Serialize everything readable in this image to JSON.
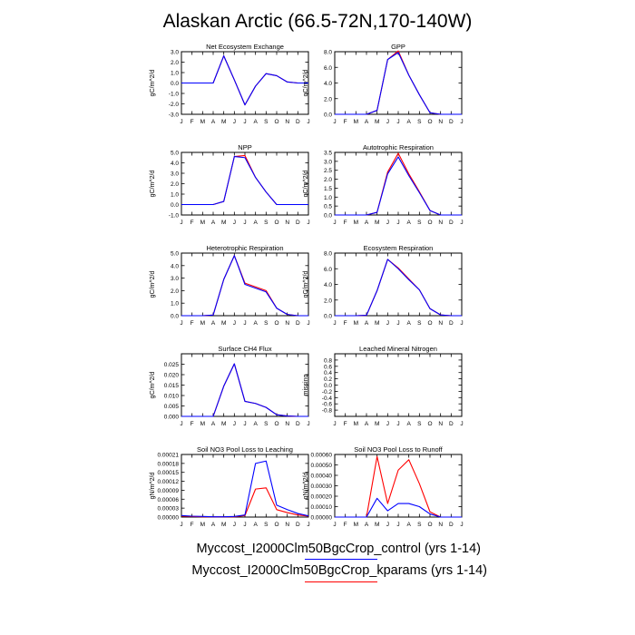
{
  "title": "Alaskan Arctic (66.5-72N,170-140W)",
  "colors": {
    "control": "#0000ff",
    "kparams": "#ff0000",
    "axis": "#000000"
  },
  "legend": [
    {
      "label": "Myccost_I2000Clm50BgcCrop_control (yrs 1-14)",
      "color": "#0000ff"
    },
    {
      "label": "Myccost_I2000Clm50BgcCrop_kparams (yrs 1-14)",
      "color": "#ff0000"
    }
  ],
  "chart_data": [
    {
      "type": "line",
      "title": "Net Ecosystem Exchange",
      "ylabel": "gC/m^2/d",
      "x": [
        "J",
        "F",
        "M",
        "A",
        "M",
        "J",
        "J",
        "A",
        "S",
        "O",
        "N",
        "D",
        "J"
      ],
      "ylim": [
        -3.0,
        3.0
      ],
      "yticks": [
        "-3.0",
        "-2.0",
        "-1.0",
        "0.0",
        "1.0",
        "2.0",
        "3.0"
      ],
      "series": [
        {
          "values": [
            0.0,
            0.0,
            0.0,
            0.0,
            2.6,
            0.3,
            -2.1,
            -0.3,
            0.9,
            0.7,
            0.1,
            0.0,
            0.0
          ]
        },
        {
          "values": [
            0.0,
            0.0,
            0.0,
            0.0,
            2.6,
            0.3,
            -2.1,
            -0.3,
            0.9,
            0.7,
            0.1,
            0.0,
            0.0
          ]
        }
      ]
    },
    {
      "type": "line",
      "title": "GPP",
      "ylabel": "gC/m^2/d",
      "x": [
        "J",
        "F",
        "M",
        "A",
        "M",
        "J",
        "J",
        "A",
        "S",
        "O",
        "N",
        "D",
        "J"
      ],
      "ylim": [
        0.0,
        8.0
      ],
      "yticks": [
        "0.0",
        "2.0",
        "4.0",
        "6.0",
        "8.0"
      ],
      "series": [
        {
          "values": [
            0.0,
            0.0,
            0.0,
            0.0,
            0.5,
            7.0,
            7.9,
            5.0,
            2.5,
            0.2,
            0.0,
            0.0,
            0.0
          ]
        },
        {
          "values": [
            0.0,
            0.0,
            0.0,
            0.0,
            0.5,
            7.0,
            8.1,
            5.0,
            2.5,
            0.2,
            0.0,
            0.0,
            0.0
          ]
        }
      ]
    },
    {
      "type": "line",
      "title": "NPP",
      "ylabel": "gC/m^2/d",
      "x": [
        "J",
        "F",
        "M",
        "A",
        "M",
        "J",
        "J",
        "A",
        "S",
        "O",
        "N",
        "D",
        "J"
      ],
      "ylim": [
        -1.0,
        5.0
      ],
      "yticks": [
        "-1.0",
        "0.0",
        "1.0",
        "2.0",
        "3.0",
        "4.0",
        "5.0"
      ],
      "series": [
        {
          "values": [
            0.0,
            0.0,
            0.0,
            0.0,
            0.3,
            4.6,
            4.5,
            2.6,
            1.2,
            0.0,
            0.0,
            0.0,
            0.0
          ]
        },
        {
          "values": [
            0.0,
            0.0,
            0.0,
            0.0,
            0.3,
            4.6,
            4.7,
            2.6,
            1.2,
            0.0,
            0.0,
            0.0,
            0.0
          ]
        }
      ]
    },
    {
      "type": "line",
      "title": "Autotrophic Respiration",
      "ylabel": "gC/m^2/d",
      "x": [
        "J",
        "F",
        "M",
        "A",
        "M",
        "J",
        "J",
        "A",
        "S",
        "O",
        "N",
        "D",
        "J"
      ],
      "ylim": [
        0.0,
        3.5
      ],
      "yticks": [
        "0.0",
        "0.5",
        "1.0",
        "1.5",
        "2.0",
        "2.5",
        "3.0",
        "3.5"
      ],
      "series": [
        {
          "values": [
            0.0,
            0.0,
            0.0,
            0.0,
            0.15,
            2.3,
            3.25,
            2.2,
            1.25,
            0.25,
            0.0,
            0.0,
            0.0
          ]
        },
        {
          "values": [
            0.0,
            0.0,
            0.0,
            0.0,
            0.15,
            2.4,
            3.45,
            2.3,
            1.3,
            0.25,
            0.0,
            0.0,
            0.0
          ]
        }
      ]
    },
    {
      "type": "line",
      "title": "Heterotrophic Respiration",
      "ylabel": "gC/m^2/d",
      "x": [
        "J",
        "F",
        "M",
        "A",
        "M",
        "J",
        "J",
        "A",
        "S",
        "O",
        "N",
        "D",
        "J"
      ],
      "ylim": [
        0.0,
        5.0
      ],
      "yticks": [
        "0.0",
        "1.0",
        "2.0",
        "3.0",
        "4.0",
        "5.0"
      ],
      "series": [
        {
          "values": [
            0.0,
            0.0,
            0.0,
            0.05,
            2.9,
            4.8,
            2.5,
            2.2,
            1.9,
            0.6,
            0.1,
            0.0,
            0.0
          ]
        },
        {
          "values": [
            0.0,
            0.0,
            0.0,
            0.05,
            2.9,
            4.8,
            2.6,
            2.3,
            2.0,
            0.6,
            0.1,
            0.0,
            0.0
          ]
        }
      ]
    },
    {
      "type": "line",
      "title": "Ecosystem Respiration",
      "ylabel": "gC/m^2/d",
      "x": [
        "J",
        "F",
        "M",
        "A",
        "M",
        "J",
        "J",
        "A",
        "S",
        "O",
        "N",
        "D",
        "J"
      ],
      "ylim": [
        0.0,
        8.0
      ],
      "yticks": [
        "0.0",
        "2.0",
        "4.0",
        "6.0",
        "8.0"
      ],
      "series": [
        {
          "values": [
            0.0,
            0.0,
            0.0,
            0.05,
            3.2,
            7.2,
            6.0,
            4.6,
            3.3,
            0.9,
            0.1,
            0.0,
            0.0
          ]
        },
        {
          "values": [
            0.0,
            0.0,
            0.0,
            0.05,
            3.2,
            7.2,
            6.1,
            4.7,
            3.3,
            0.9,
            0.1,
            0.0,
            0.0
          ]
        }
      ]
    },
    {
      "type": "line",
      "title": "Surface CH4 Flux",
      "ylabel": "gC/m^2/d",
      "x": [
        "J",
        "F",
        "M",
        "A",
        "M",
        "J",
        "J",
        "A",
        "S",
        "O",
        "N",
        "D",
        "J"
      ],
      "ylim": [
        0.0,
        0.03
      ],
      "yticks": [
        "0.000",
        "0.005",
        "0.010",
        "0.015",
        "0.020",
        "0.025"
      ],
      "series": [
        {
          "values": [
            0.0,
            0.0,
            0.0,
            0.0,
            0.0145,
            0.0252,
            0.0072,
            0.0062,
            0.0043,
            0.0008,
            0.0002,
            0.0,
            0.0
          ]
        },
        {
          "values": [
            0.0,
            0.0,
            0.0,
            0.0,
            0.0145,
            0.0252,
            0.0072,
            0.0062,
            0.0043,
            0.0008,
            0.0002,
            0.0,
            0.0
          ]
        }
      ]
    },
    {
      "type": "line",
      "title": "Leached Mineral Nitrogen",
      "ylabel": "missing",
      "x": [
        "J",
        "F",
        "M",
        "A",
        "M",
        "J",
        "J",
        "A",
        "S",
        "O",
        "N",
        "D",
        "J"
      ],
      "ylim": [
        -1.0,
        1.0
      ],
      "yticks": [
        "-0.8",
        "-0.6",
        "-0.4",
        "-0.2",
        "0.0",
        "0.2",
        "0.4",
        "0.6",
        "0.8"
      ],
      "series": []
    },
    {
      "type": "line",
      "title": "Soil NO3 Pool Loss to Leaching",
      "ylabel": "gN/m^2/d",
      "x": [
        "J",
        "F",
        "M",
        "A",
        "M",
        "J",
        "J",
        "A",
        "S",
        "O",
        "N",
        "D",
        "J"
      ],
      "ylim": [
        0.0,
        0.00021
      ],
      "yticks": [
        "0.00000",
        "0.00003",
        "0.00006",
        "0.00009",
        "0.00012",
        "0.00015",
        "0.00018",
        "0.00021"
      ],
      "series": [
        {
          "values": [
            5e-06,
            3e-06,
            2e-06,
            1e-06,
            1e-06,
            2e-06,
            7e-06,
            0.00018,
            0.000188,
            4e-05,
            2.5e-05,
            1.2e-05,
            4e-06
          ]
        },
        {
          "values": [
            3e-06,
            2e-06,
            1e-06,
            1e-06,
            1e-06,
            1e-06,
            5e-06,
            9.4e-05,
            9.8e-05,
            2.5e-05,
            1.5e-05,
            7e-06,
            3e-06
          ]
        }
      ]
    },
    {
      "type": "line",
      "title": "Soil NO3 Pool Loss to Runoff",
      "ylabel": "gN/m^2/d",
      "x": [
        "J",
        "F",
        "M",
        "A",
        "M",
        "J",
        "J",
        "A",
        "S",
        "O",
        "N",
        "D",
        "J"
      ],
      "ylim": [
        0.0,
        0.0006
      ],
      "yticks": [
        "0.00000",
        "0.00010",
        "0.00020",
        "0.00030",
        "0.00040",
        "0.00050",
        "0.00060"
      ],
      "series": [
        {
          "values": [
            0.0,
            0.0,
            0.0,
            0.0,
            0.00018,
            6e-05,
            0.00013,
            0.00013,
            0.0001,
            3e-05,
            0.0,
            0.0,
            0.0
          ]
        },
        {
          "values": [
            0.0,
            0.0,
            0.0,
            0.0,
            0.00058,
            0.00013,
            0.00045,
            0.00055,
            0.00032,
            5e-05,
            0.0,
            0.0,
            0.0
          ]
        }
      ]
    }
  ]
}
